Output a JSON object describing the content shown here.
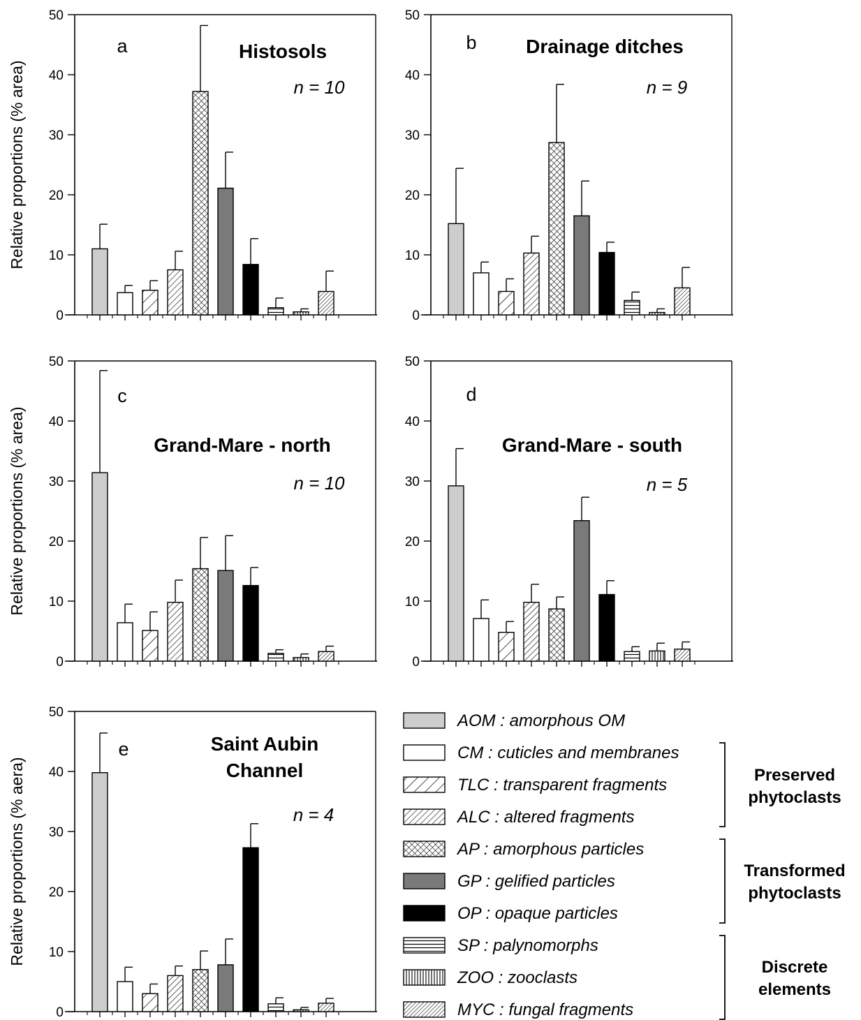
{
  "chart_data": [
    {
      "type": "bar",
      "panel_letter": "a",
      "title": "Histosols",
      "n_label": "n = 10",
      "ylabel": "Relative proportions (% area)",
      "ylim": [
        0,
        50
      ],
      "yticks": [
        0,
        10,
        20,
        30,
        40,
        50
      ],
      "categories": [
        "AOM",
        "CM",
        "TLC",
        "ALC",
        "AP",
        "GP",
        "OP",
        "SP",
        "ZOO",
        "MYC"
      ],
      "values": [
        11,
        3.7,
        4.1,
        7.5,
        37.2,
        21.1,
        8.4,
        1.2,
        0.5,
        3.9
      ],
      "errors": [
        4.1,
        1.2,
        1.6,
        3.1,
        11,
        6,
        4.3,
        1.6,
        0.5,
        3.4
      ]
    },
    {
      "type": "bar",
      "panel_letter": "b",
      "title": "Drainage ditches",
      "n_label": "n = 9",
      "ylabel": "",
      "ylim": [
        0,
        50
      ],
      "yticks": [
        0,
        10,
        20,
        30,
        40,
        50
      ],
      "categories": [
        "AOM",
        "CM",
        "TLC",
        "ALC",
        "AP",
        "GP",
        "OP",
        "SP",
        "ZOO",
        "MYC"
      ],
      "values": [
        15.2,
        7,
        3.9,
        10.3,
        28.7,
        16.5,
        10.4,
        2.4,
        0.4,
        4.5
      ],
      "errors": [
        9.2,
        1.8,
        2.1,
        2.8,
        9.7,
        5.8,
        1.7,
        1.4,
        0.6,
        3.4
      ]
    },
    {
      "type": "bar",
      "panel_letter": "c",
      "title": "Grand-Mare - north",
      "n_label": "n = 10",
      "ylabel": "Relative proportions (% area)",
      "ylim": [
        0,
        50
      ],
      "yticks": [
        0,
        10,
        20,
        30,
        40,
        50
      ],
      "categories": [
        "AOM",
        "CM",
        "TLC",
        "ALC",
        "AP",
        "GP",
        "OP",
        "SP",
        "ZOO",
        "MYC"
      ],
      "values": [
        31.4,
        6.4,
        5.1,
        9.8,
        15.4,
        15.1,
        12.6,
        1.3,
        0.6,
        1.6
      ],
      "errors": [
        17,
        3.1,
        3.1,
        3.7,
        5.2,
        5.8,
        3,
        0.6,
        0.6,
        0.9
      ]
    },
    {
      "type": "bar",
      "panel_letter": "d",
      "title": "Grand-Mare - south",
      "n_label": "n = 5",
      "ylabel": "",
      "ylim": [
        0,
        50
      ],
      "yticks": [
        0,
        10,
        20,
        30,
        40,
        50
      ],
      "categories": [
        "AOM",
        "CM",
        "TLC",
        "ALC",
        "AP",
        "GP",
        "OP",
        "SP",
        "ZOO",
        "MYC"
      ],
      "values": [
        29.2,
        7.1,
        4.8,
        9.8,
        8.7,
        23.4,
        11.1,
        1.6,
        1.7,
        2
      ],
      "errors": [
        6.2,
        3.1,
        1.8,
        3,
        2,
        3.9,
        2.3,
        0.8,
        1.3,
        1.2
      ]
    },
    {
      "type": "bar",
      "panel_letter": "e",
      "title": "Saint Aubin Channel",
      "title_lines": [
        "Saint Aubin",
        "Channel"
      ],
      "n_label": "n = 4",
      "ylabel": "Relative proportions (% aera)",
      "ylim": [
        0,
        50
      ],
      "yticks": [
        0,
        10,
        20,
        30,
        40,
        50
      ],
      "categories": [
        "AOM",
        "CM",
        "TLC",
        "ALC",
        "AP",
        "GP",
        "OP",
        "SP",
        "ZOO",
        "MYC"
      ],
      "values": [
        39.8,
        5,
        3,
        6,
        7,
        7.8,
        27.3,
        1.3,
        0.3,
        1.4
      ],
      "errors": [
        6.6,
        2.4,
        1.6,
        1.6,
        3.1,
        4.3,
        4,
        1,
        0.4,
        0.8
      ]
    }
  ],
  "legend": {
    "items": [
      {
        "code": "AOM",
        "text": "AOM : amorphous OM",
        "fill": "#cdcdcd",
        "pattern": "solid"
      },
      {
        "code": "CM",
        "text": "CM : cuticles and membranes",
        "fill": "#ffffff",
        "pattern": "solid"
      },
      {
        "code": "TLC",
        "text": "TLC : transparent fragments",
        "fill": "#ffffff",
        "pattern": "wide-diagonal"
      },
      {
        "code": "ALC",
        "text": "ALC : altered fragments",
        "fill": "#ffffff",
        "pattern": "narrow-diagonal"
      },
      {
        "code": "AP",
        "text": "AP : amorphous particles",
        "fill": "#ffffff",
        "pattern": "crosshatch"
      },
      {
        "code": "GP",
        "text": "GP : gelified particles",
        "fill": "#7a7a7a",
        "pattern": "solid"
      },
      {
        "code": "OP",
        "text": "OP : opaque particles",
        "fill": "#000000",
        "pattern": "solid"
      },
      {
        "code": "SP",
        "text": "SP : palynomorphs",
        "fill": "#ffffff",
        "pattern": "horizontal"
      },
      {
        "code": "ZOO",
        "text": "ZOO : zooclasts",
        "fill": "#ffffff",
        "pattern": "vertical"
      },
      {
        "code": "MYC",
        "text": "MYC : fungal fragments",
        "fill": "#ffffff",
        "pattern": "dense-diagonal"
      }
    ],
    "groups": [
      {
        "lines": [
          "Preserved",
          "phytoclasts"
        ]
      },
      {
        "lines": [
          "Transformed",
          "phytoclasts"
        ]
      },
      {
        "lines": [
          "Discrete",
          "elements"
        ]
      }
    ]
  }
}
